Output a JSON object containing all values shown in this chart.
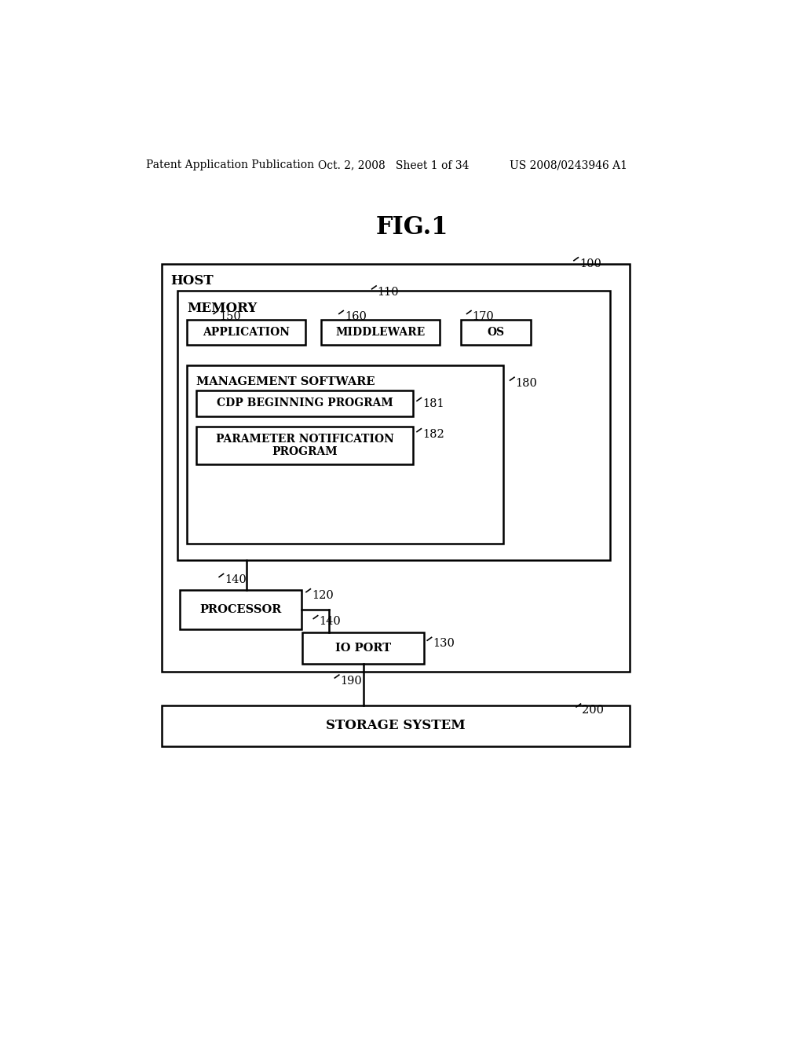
{
  "bg_color": "#ffffff",
  "header_line1": "Patent Application Publication",
  "header_line2": "Oct. 2, 2008   Sheet 1 of 34",
  "header_line3": "US 2008/0243946 A1",
  "fig_title": "FIG.1",
  "labels": {
    "host": "HOST",
    "memory": "MEMORY",
    "application": "APPLICATION",
    "middleware": "MIDDLEWARE",
    "os": "OS",
    "mgmt_software": "MANAGEMENT SOFTWARE",
    "cdp_program": "CDP BEGINNING PROGRAM",
    "param_program": "PARAMETER NOTIFICATION\nPROGRAM",
    "processor": "PROCESSOR",
    "io_port": "IO PORT",
    "storage": "STORAGE SYSTEM"
  },
  "ref_nums": {
    "r100": "100",
    "r110": "110",
    "r120": "120",
    "r130": "130",
    "r140a": "140",
    "r140b": "140",
    "r150": "150",
    "r160": "160",
    "r170": "170",
    "r180": "180",
    "r181": "181",
    "r182": "182",
    "r190": "190",
    "r200": "200"
  }
}
